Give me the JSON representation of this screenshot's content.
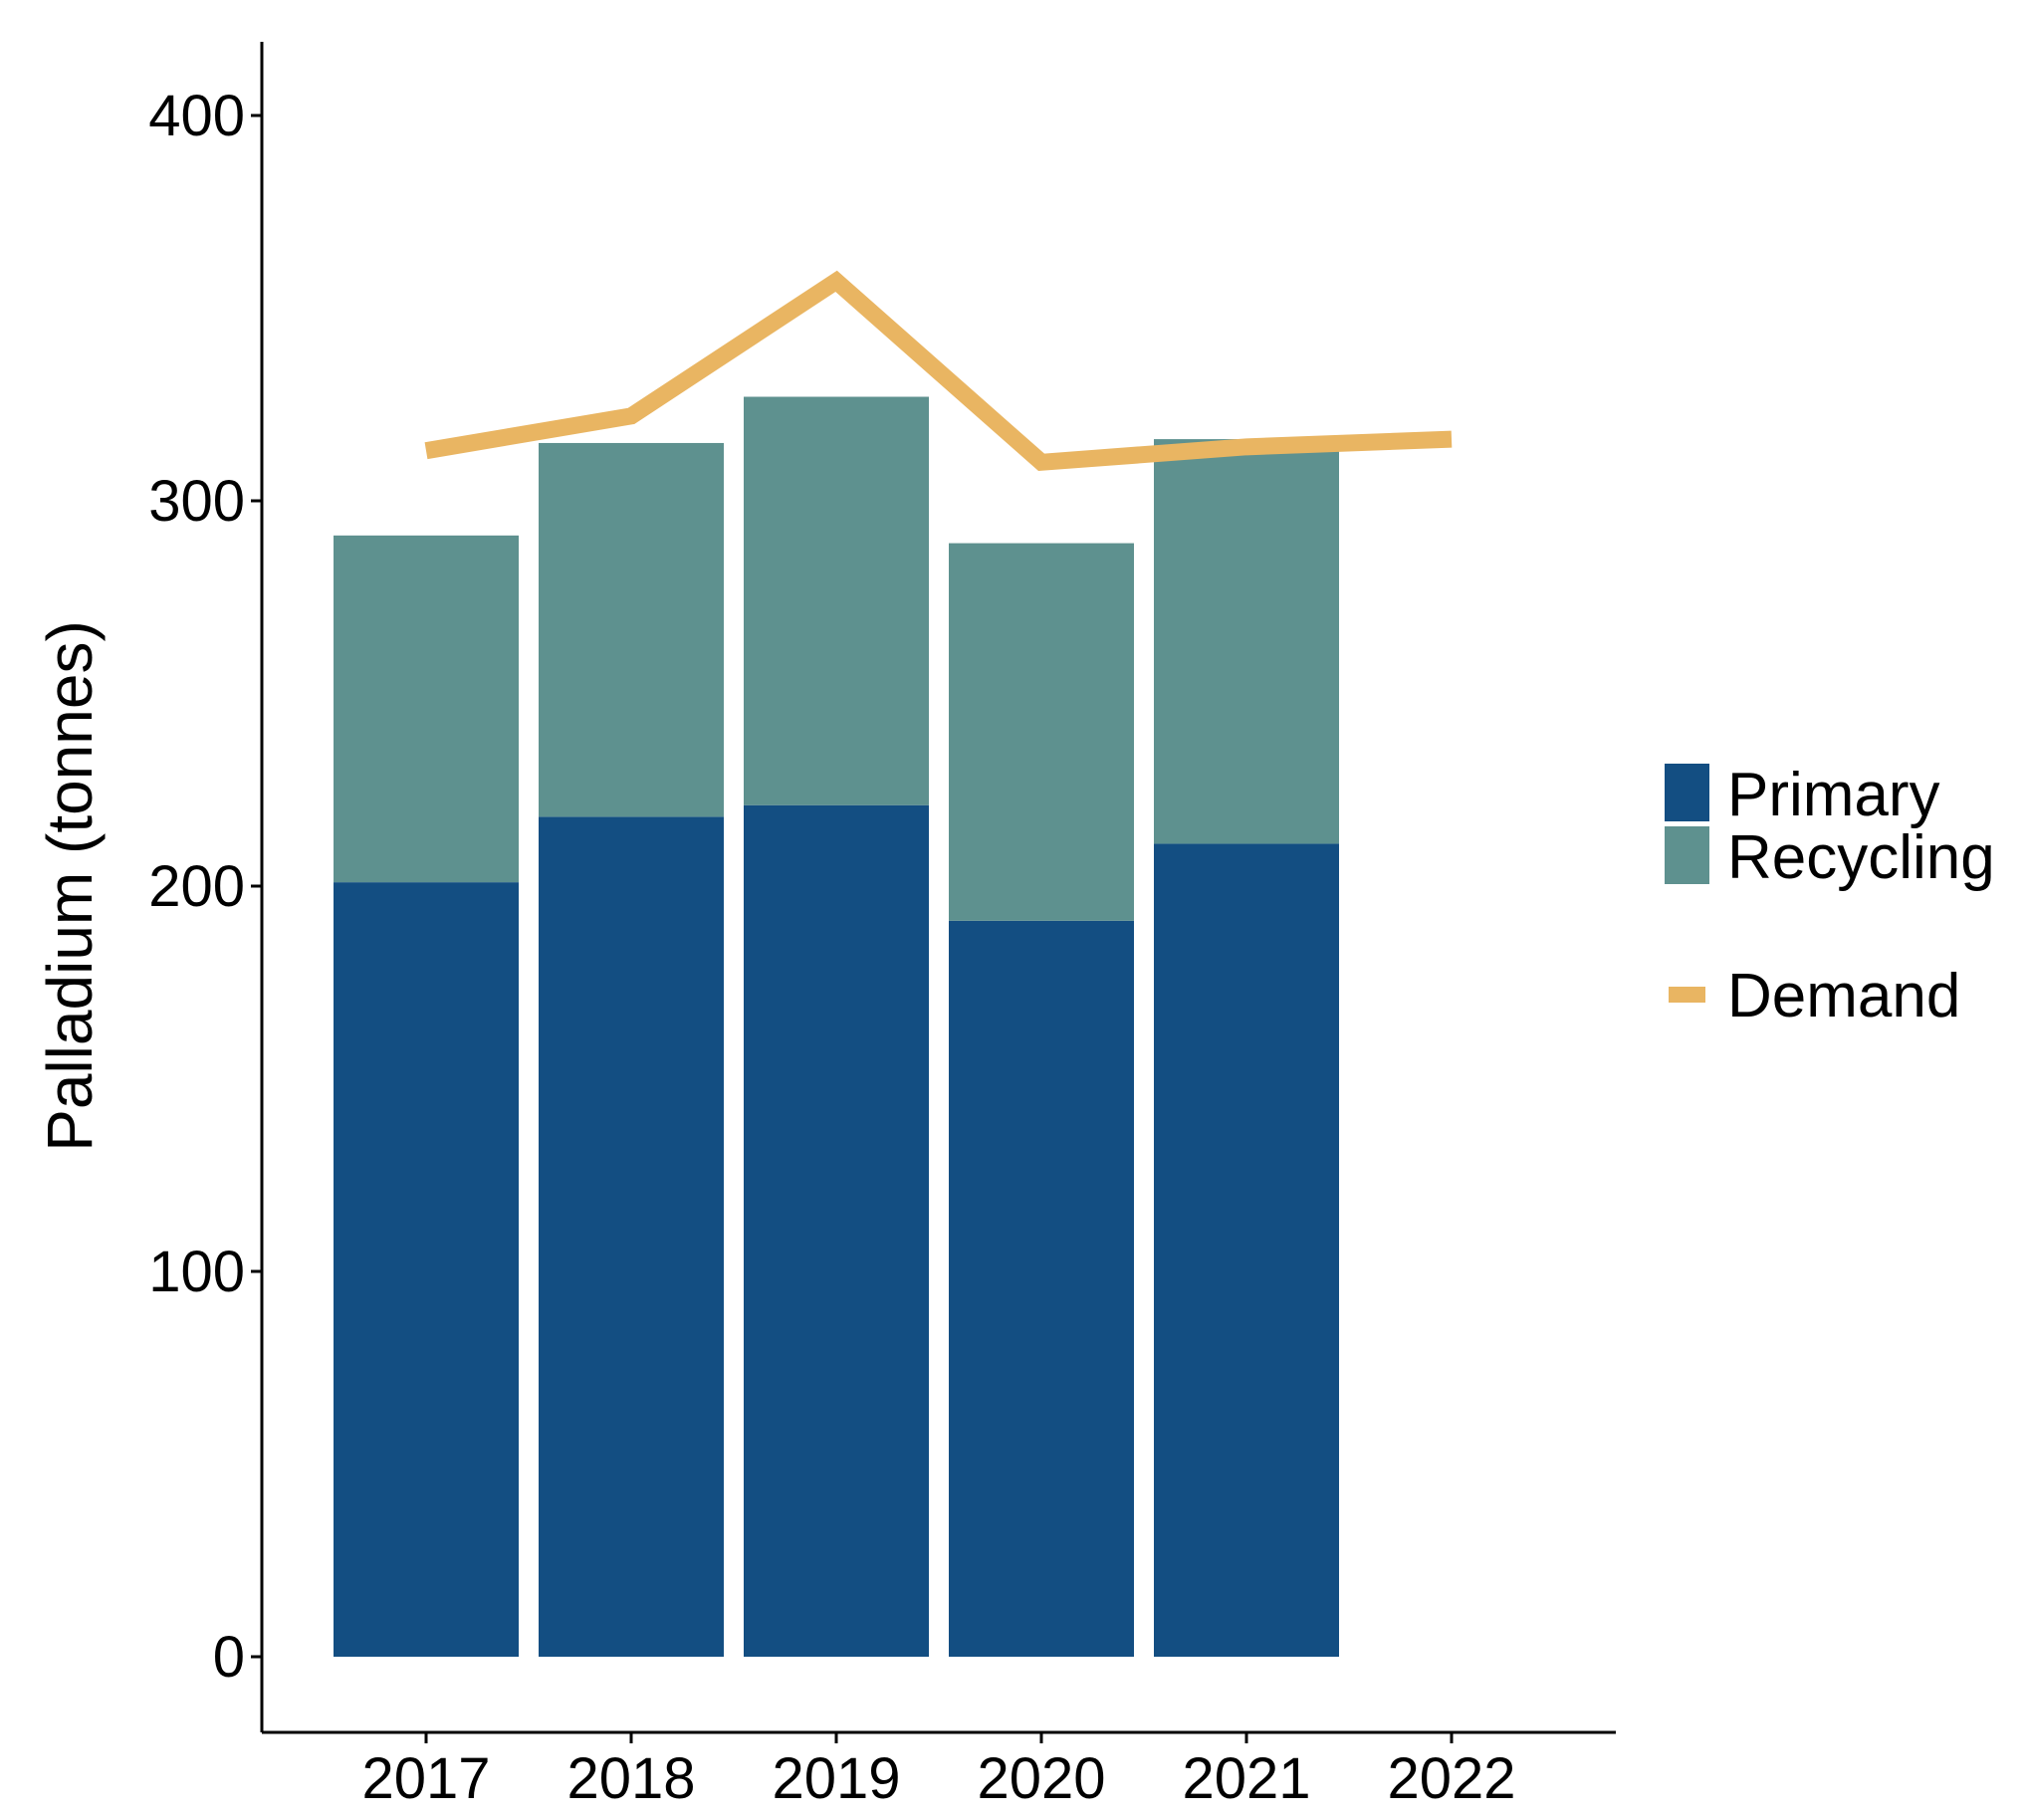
{
  "chart_data": {
    "type": "bar",
    "stacked": true,
    "categories": [
      "2017",
      "2018",
      "2019",
      "2020",
      "2021",
      "2022"
    ],
    "series": [
      {
        "name": "Primary",
        "kind": "bar",
        "color": "#134e82",
        "values": [
          201,
          218,
          221,
          191,
          211,
          null
        ]
      },
      {
        "name": "Recycling",
        "kind": "bar",
        "color": "#5e918f",
        "values": [
          90,
          97,
          106,
          98,
          105,
          null
        ]
      },
      {
        "name": "Demand",
        "kind": "line",
        "color": "#e9b562",
        "values": [
          313,
          322,
          357,
          310,
          314,
          316
        ]
      }
    ],
    "ylabel": "Palladium (tonnes)",
    "xlabel": "",
    "ylim": [
      -20,
      420
    ],
    "yticks": [
      0,
      100,
      200,
      300,
      400
    ],
    "grid": false,
    "legend_position": "right"
  }
}
